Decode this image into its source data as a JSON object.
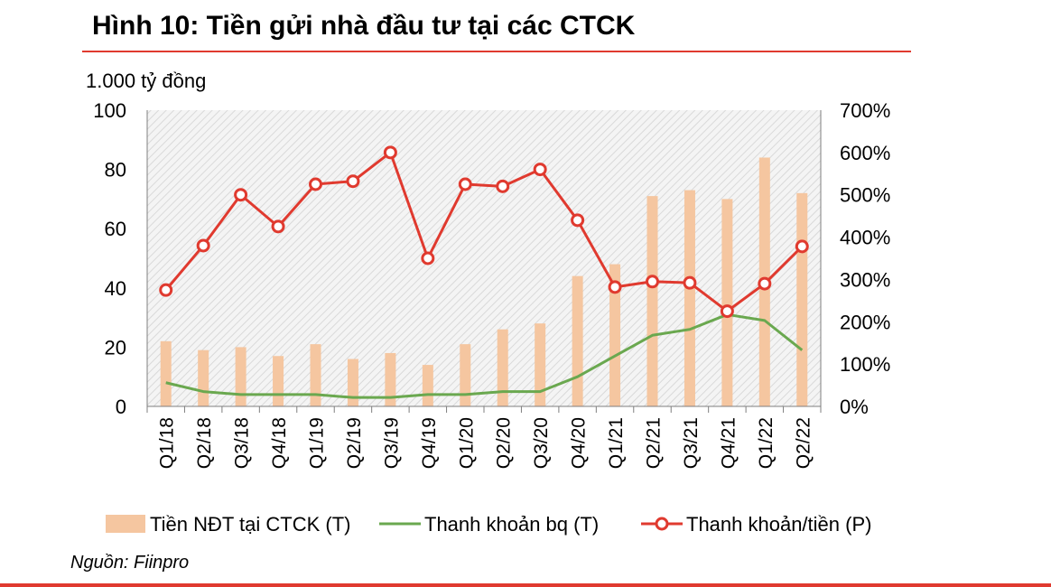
{
  "title": "Hình 10: Tiền gửi nhà đầu tư tại các CTCK",
  "source": "Nguồn: Fiinpro",
  "colors": {
    "bar": "#f5c6a0",
    "liquidity": "#6aa84f",
    "ratio": "#e03a2f",
    "accent": "#e03a2f"
  },
  "chart_data": {
    "type": "bar",
    "ylabel_left": "1.000 tỷ đồng",
    "ylim_left": [
      0,
      100
    ],
    "yticks_left": [
      "0",
      "20",
      "40",
      "60",
      "80",
      "100"
    ],
    "ylim_right": [
      0,
      700
    ],
    "yticks_right": [
      "0%",
      "100%",
      "200%",
      "300%",
      "400%",
      "500%",
      "600%",
      "700%"
    ],
    "categories": [
      "Q1/18",
      "Q2/18",
      "Q3/18",
      "Q4/18",
      "Q1/19",
      "Q2/19",
      "Q3/19",
      "Q4/19",
      "Q1/20",
      "Q2/20",
      "Q3/20",
      "Q4/20",
      "Q1/21",
      "Q2/21",
      "Q3/21",
      "Q4/21",
      "Q1/22",
      "Q2/22"
    ],
    "grid": false,
    "legend_position": "bottom",
    "series": [
      {
        "name": "Tiền NĐT tại CTCK (T)",
        "type": "bar",
        "axis": "left",
        "values": [
          22,
          19,
          20,
          17,
          21,
          16,
          18,
          14,
          21,
          26,
          28,
          44,
          48,
          71,
          73,
          70,
          84,
          72
        ]
      },
      {
        "name": "Thanh khoản bq (T)",
        "type": "line",
        "axis": "left",
        "values": [
          8,
          5,
          4,
          4,
          4,
          3,
          3,
          4,
          4,
          5,
          5,
          10,
          17,
          24,
          26,
          31,
          29,
          19
        ]
      },
      {
        "name": "Thanh khoản/tiền (P)",
        "type": "line",
        "axis": "right",
        "markers": true,
        "values": [
          275,
          380,
          500,
          425,
          525,
          532,
          600,
          350,
          525,
          520,
          560,
          440,
          282,
          295,
          292,
          225,
          290,
          378
        ]
      }
    ]
  }
}
